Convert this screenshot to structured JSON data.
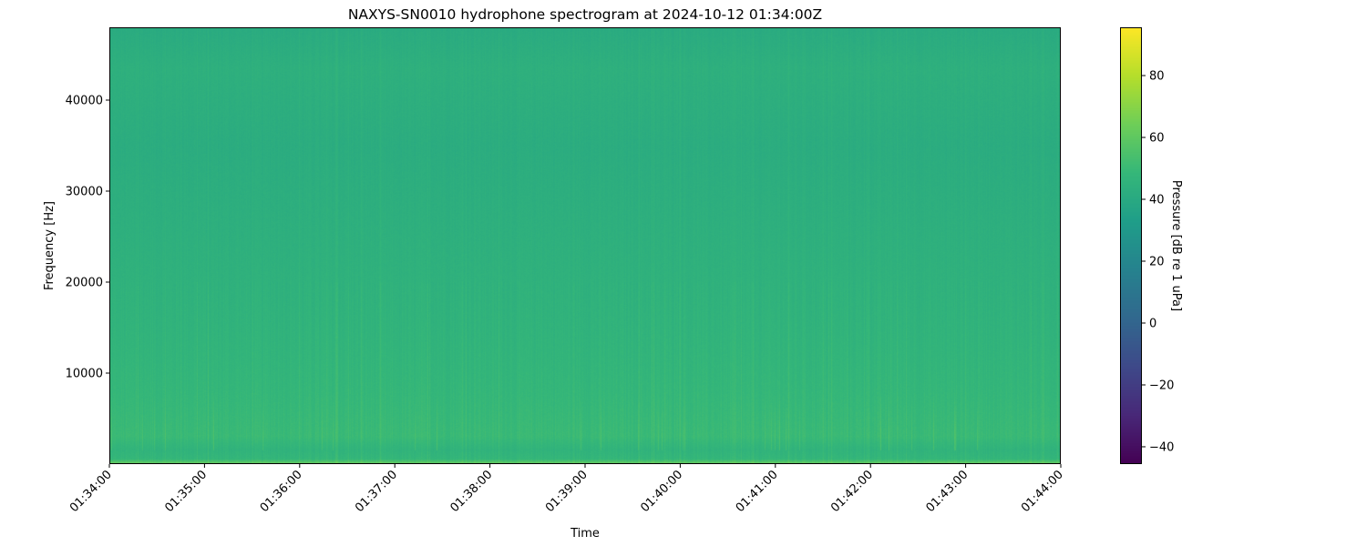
{
  "chart_data": {
    "type": "heatmap",
    "title": "NAXYS-SN0010 hydrophone spectrogram at 2024-10-12 01:34:00Z",
    "xlabel": "Time",
    "ylabel": "Frequency [Hz]",
    "colorbar_label": "Pressure [dB re 1 uPa]",
    "colormap": "viridis",
    "x_ticks": [
      "01:34:00",
      "01:35:00",
      "01:36:00",
      "01:37:00",
      "01:38:00",
      "01:39:00",
      "01:40:00",
      "01:41:00",
      "01:42:00",
      "01:43:00",
      "01:44:00"
    ],
    "xlim": [
      "01:34:00",
      "01:44:00"
    ],
    "y_ticks": [
      10000,
      20000,
      30000,
      40000
    ],
    "ylim": [
      0,
      48000
    ],
    "colorbar_ticks": [
      -40,
      -20,
      0,
      20,
      40,
      60,
      80
    ],
    "clim": [
      -45.6,
      95.6
    ],
    "approx_level_db_by_frequency": [
      {
        "freq_hz": 0,
        "db": 62
      },
      {
        "freq_hz": 500,
        "db": 48
      },
      {
        "freq_hz": 1500,
        "db": 46
      },
      {
        "freq_hz": 3000,
        "db": 50
      },
      {
        "freq_hz": 8000,
        "db": 48
      },
      {
        "freq_hz": 15000,
        "db": 46
      },
      {
        "freq_hz": 25000,
        "db": 44
      },
      {
        "freq_hz": 35000,
        "db": 42
      },
      {
        "freq_hz": 43500,
        "db": 44
      },
      {
        "freq_hz": 48000,
        "db": 41
      }
    ]
  }
}
